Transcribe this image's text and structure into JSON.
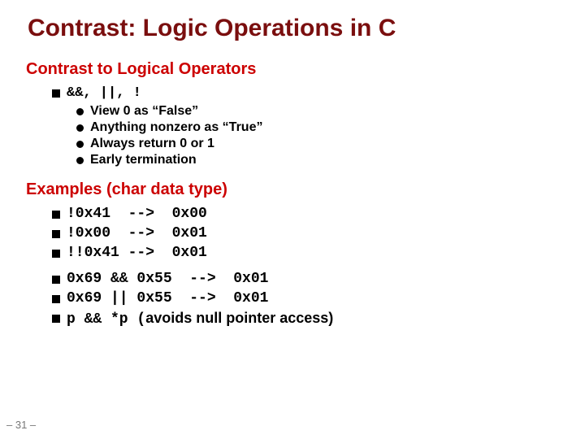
{
  "title": "Contrast: Logic Operations in C",
  "section1": "Contrast to Logical Operators",
  "ops": "&&, ||, !",
  "sub": {
    "a": "View 0 as “False”",
    "b": "Anything nonzero as “True”",
    "c": "Always return 0 or 1",
    "d": "Early termination"
  },
  "section2": "Examples (char data type)",
  "ex": {
    "e1": "!0x41  -->  0x00",
    "e2": "!0x00  -->  0x01",
    "e3": "!!0x41 -->  0x01",
    "e4": "0x69 && 0x55  -->  0x01",
    "e5": "0x69 || 0x55  -->  0x01",
    "e6mono": "p && *p (",
    "e6text": "avoids null pointer access)"
  },
  "page": "– 31 –",
  "colors": {
    "dark_red": "#7a0e0e",
    "red": "#cc0000",
    "black": "#000000",
    "gray": "#777777"
  }
}
